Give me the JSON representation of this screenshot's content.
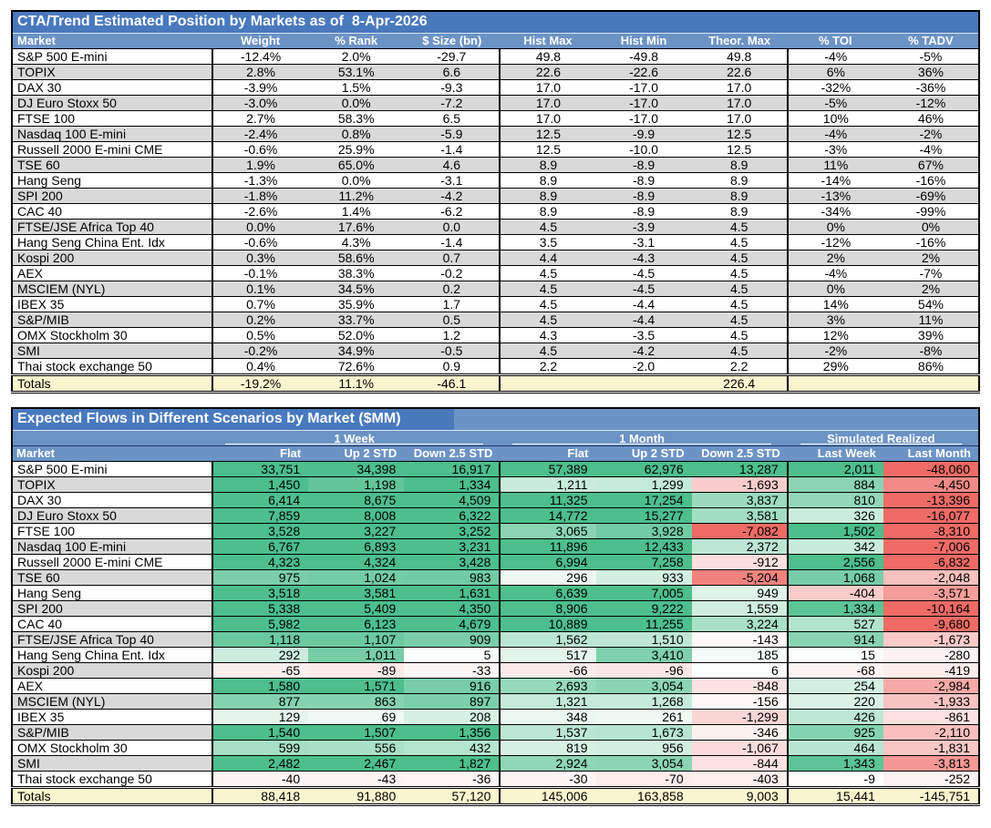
{
  "page": {
    "background": "#FFFFFF"
  },
  "colors": {
    "title_bar": "#4879BD",
    "header_bar": "#6B93C6",
    "header_divider": "#1F3864",
    "row_band": "#D9D9D9",
    "totals_background": "#F9F6CF",
    "border": "#000000",
    "header_text": "#FFFFFF",
    "body_text": "#000000",
    "heat_positive": "#4DBE8C",
    "heat_negative": "#EE6B66",
    "heat_neutral": "#FFFFFF"
  },
  "heatmap": {
    "gamma": 0.8,
    "column_caps": [
      {
        "positive": 1400,
        "negative": 1000
      },
      {
        "positive": 1400,
        "negative": 1000
      },
      {
        "positive": 1300,
        "negative": 1000
      },
      {
        "positive": 5200,
        "negative": 800
      },
      {
        "positive": 5200,
        "negative": 900
      },
      {
        "positive": 8000,
        "negative": 6500
      },
      {
        "positive": 1500,
        "negative": 1500
      },
      {
        "positive": 2000,
        "negative": 6000
      }
    ]
  },
  "chart_data": [
    {
      "type": "table",
      "title": "CTA/Trend Estimated Position by Markets as of  8-Apr-2026",
      "columns": [
        "Market",
        "Weight",
        "% Rank",
        "$ Size (bn)",
        "Hist Max",
        "Hist Min",
        "Theor. Max",
        "% TOI",
        "% TADV"
      ],
      "rows": [
        [
          "S&P 500 E-mini",
          "-12.4%",
          "2.0%",
          "-29.7",
          "49.8",
          "-49.8",
          "49.8",
          "-4%",
          "-5%"
        ],
        [
          "TOPIX",
          "2.8%",
          "53.1%",
          "6.6",
          "22.6",
          "-22.6",
          "22.6",
          "6%",
          "36%"
        ],
        [
          "DAX 30",
          "-3.9%",
          "1.5%",
          "-9.3",
          "17.0",
          "-17.0",
          "17.0",
          "-32%",
          "-36%"
        ],
        [
          "DJ Euro Stoxx 50",
          "-3.0%",
          "0.0%",
          "-7.2",
          "17.0",
          "-17.0",
          "17.0",
          "-5%",
          "-12%"
        ],
        [
          "FTSE 100",
          "2.7%",
          "58.3%",
          "6.5",
          "17.0",
          "-17.0",
          "17.0",
          "10%",
          "46%"
        ],
        [
          "Nasdaq 100 E-mini",
          "-2.4%",
          "0.8%",
          "-5.9",
          "12.5",
          "-9.9",
          "12.5",
          "-4%",
          "-2%"
        ],
        [
          "Russell 2000 E-mini CME",
          "-0.6%",
          "25.9%",
          "-1.4",
          "12.5",
          "-10.0",
          "12.5",
          "-3%",
          "-4%"
        ],
        [
          "TSE 60",
          "1.9%",
          "65.0%",
          "4.6",
          "8.9",
          "-8.9",
          "8.9",
          "11%",
          "67%"
        ],
        [
          "Hang Seng",
          "-1.3%",
          "0.0%",
          "-3.1",
          "8.9",
          "-8.9",
          "8.9",
          "-14%",
          "-16%"
        ],
        [
          "SPI 200",
          "-1.8%",
          "11.2%",
          "-4.2",
          "8.9",
          "-8.9",
          "8.9",
          "-13%",
          "-69%"
        ],
        [
          "CAC 40",
          "-2.6%",
          "1.4%",
          "-6.2",
          "8.9",
          "-8.9",
          "8.9",
          "-34%",
          "-99%"
        ],
        [
          "FTSE/JSE Africa Top 40",
          "0.0%",
          "17.6%",
          "0.0",
          "4.5",
          "-3.9",
          "4.5",
          "0%",
          "0%"
        ],
        [
          "Hang Seng China Ent. Idx",
          "-0.6%",
          "4.3%",
          "-1.4",
          "3.5",
          "-3.1",
          "4.5",
          "-12%",
          "-16%"
        ],
        [
          "Kospi 200",
          "0.3%",
          "58.6%",
          "0.7",
          "4.4",
          "-4.3",
          "4.5",
          "2%",
          "2%"
        ],
        [
          "AEX",
          "-0.1%",
          "38.3%",
          "-0.2",
          "4.5",
          "-4.5",
          "4.5",
          "-4%",
          "-7%"
        ],
        [
          "MSCIEM (NYL)",
          "0.1%",
          "34.5%",
          "0.2",
          "4.5",
          "-4.5",
          "4.5",
          "0%",
          "2%"
        ],
        [
          "IBEX 35",
          "0.7%",
          "35.9%",
          "1.7",
          "4.5",
          "-4.4",
          "4.5",
          "14%",
          "54%"
        ],
        [
          "S&P/MIB",
          "0.2%",
          "33.7%",
          "0.5",
          "4.5",
          "-4.4",
          "4.5",
          "3%",
          "11%"
        ],
        [
          "OMX Stockholm 30",
          "0.5%",
          "52.0%",
          "1.2",
          "4.3",
          "-3.5",
          "4.5",
          "12%",
          "39%"
        ],
        [
          "SMI",
          "-0.2%",
          "34.9%",
          "-0.5",
          "4.5",
          "-4.2",
          "4.5",
          "-2%",
          "-8%"
        ],
        [
          "Thai stock exchange 50",
          "0.4%",
          "72.6%",
          "0.9",
          "2.2",
          "-2.0",
          "2.2",
          "29%",
          "86%"
        ]
      ],
      "totals": [
        "Totals",
        "-19.2%",
        "11.1%",
        "-46.1",
        "",
        "",
        "226.4",
        "",
        ""
      ]
    },
    {
      "type": "table",
      "title": "Expected Flows in Different Scenarios by Market ($MM)",
      "market_header": "Market",
      "column_groups": [
        {
          "label": "1 Week",
          "columns": [
            "Flat",
            "Up 2 STD",
            "Down 2.5 STD"
          ]
        },
        {
          "label": "1 Month",
          "columns": [
            "Flat",
            "Up 2 STD",
            "Down 2.5 STD"
          ]
        },
        {
          "label": "Simulated Realized",
          "columns": [
            "Last Week",
            "Last Month"
          ]
        }
      ],
      "rows": [
        {
          "market": "S&P 500 E-mini",
          "values": [
            33751,
            34398,
            16917,
            57389,
            62976,
            13287,
            2011,
            -48060
          ]
        },
        {
          "market": "TOPIX",
          "values": [
            1450,
            1198,
            1334,
            1211,
            1299,
            -1693,
            884,
            -4450
          ]
        },
        {
          "market": "DAX 30",
          "values": [
            6414,
            8675,
            4509,
            11325,
            17254,
            3837,
            810,
            -13396
          ]
        },
        {
          "market": "DJ Euro Stoxx 50",
          "values": [
            7859,
            8008,
            6322,
            14772,
            15277,
            3581,
            326,
            -16077
          ]
        },
        {
          "market": "FTSE 100",
          "values": [
            3528,
            3227,
            3252,
            3065,
            3928,
            -7082,
            1502,
            -8310
          ]
        },
        {
          "market": "Nasdaq 100 E-mini",
          "values": [
            6767,
            6893,
            3231,
            11896,
            12433,
            2372,
            342,
            -7006
          ]
        },
        {
          "market": "Russell 2000 E-mini CME",
          "values": [
            4323,
            4324,
            3428,
            6994,
            7258,
            -912,
            2556,
            -6832
          ]
        },
        {
          "market": "TSE 60",
          "values": [
            975,
            1024,
            983,
            296,
            933,
            -5204,
            1068,
            -2048
          ]
        },
        {
          "market": "Hang Seng",
          "values": [
            3518,
            3581,
            1631,
            6639,
            7005,
            949,
            -404,
            -3571
          ]
        },
        {
          "market": "SPI 200",
          "values": [
            5338,
            5409,
            4350,
            8906,
            9222,
            1559,
            1334,
            -10164
          ]
        },
        {
          "market": "CAC 40",
          "values": [
            5982,
            6123,
            4679,
            10889,
            11255,
            3224,
            527,
            -9680
          ]
        },
        {
          "market": "FTSE/JSE Africa Top 40",
          "values": [
            1118,
            1107,
            909,
            1562,
            1510,
            -143,
            914,
            -1673
          ]
        },
        {
          "market": "Hang Seng China Ent. Idx",
          "values": [
            292,
            1011,
            5,
            517,
            3410,
            185,
            15,
            -280
          ]
        },
        {
          "market": "Kospi 200",
          "values": [
            -65,
            -89,
            -33,
            -66,
            -96,
            6,
            -68,
            -419
          ]
        },
        {
          "market": "AEX",
          "values": [
            1580,
            1571,
            916,
            2693,
            3054,
            -848,
            254,
            -2984
          ]
        },
        {
          "market": "MSCIEM (NYL)",
          "values": [
            877,
            863,
            897,
            1321,
            1268,
            -156,
            220,
            -1933
          ]
        },
        {
          "market": "IBEX 35",
          "values": [
            129,
            69,
            208,
            348,
            261,
            -1299,
            426,
            -861
          ]
        },
        {
          "market": "S&P/MIB",
          "values": [
            1540,
            1507,
            1356,
            1537,
            1673,
            -346,
            925,
            -2110
          ]
        },
        {
          "market": "OMX Stockholm 30",
          "values": [
            599,
            556,
            432,
            819,
            956,
            -1067,
            464,
            -1831
          ]
        },
        {
          "market": "SMI",
          "values": [
            2482,
            2467,
            1827,
            2924,
            3054,
            -844,
            1343,
            -3813
          ]
        },
        {
          "market": "Thai stock exchange 50",
          "values": [
            -40,
            -43,
            -36,
            -30,
            -70,
            -403,
            -9,
            -252
          ]
        }
      ],
      "totals_label": "Totals",
      "totals": [
        88418,
        91880,
        57120,
        145006,
        163858,
        9003,
        15441,
        -145751
      ]
    }
  ]
}
